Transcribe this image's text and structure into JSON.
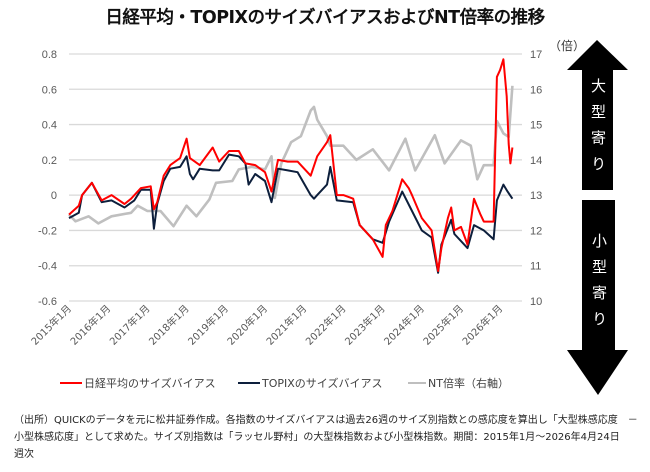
{
  "title": "日経平均・TOPIXのサイズバイアスおよびNT倍率の推移",
  "right_unit": "（倍）",
  "arrows": {
    "up_label": "大型寄り",
    "down_label": "小型寄り"
  },
  "legend": [
    "日経平均のサイズバイアス",
    "TOPIXのサイズバイアス",
    "NT倍率（右軸）"
  ],
  "footnote": "（出所）QUICKのデータを元に松井証券作成。各指数のサイズバイアスは過去26週のサイズ別指数との感応度を算出し「大型株感応度　－　小型株感応度」として求めた。サイズ別指数は「ラッセル野村」の大型株指数および小型株指数。期間：2015年1月～2026年4月24日　週次",
  "chart_data": {
    "type": "line",
    "title": "日経平均・TOPIXのサイズバイアスおよびNT倍率の推移",
    "xlim": [
      "2015-01-01",
      "2026-07-22"
    ],
    "x_ticks": [
      "2015年1月",
      "2016年1月",
      "2017年1月",
      "2018年1月",
      "2019年1月",
      "2020年1月",
      "2021年1月",
      "2022年1月",
      "2023年1月",
      "2024年1月",
      "2025年1月",
      "2026年1月"
    ],
    "ylim": [
      -0.6,
      0.8
    ],
    "y_ticks": [
      "0.8",
      "0.6",
      "0.4",
      "0.2",
      "0",
      "-0.2",
      "-0.4",
      "-0.6"
    ],
    "y2lim": [
      10,
      17
    ],
    "y2_ticks": [
      "17",
      "16",
      "15",
      "14",
      "13",
      "12",
      "11",
      "10"
    ],
    "y2label": "（倍）",
    "grid": true,
    "legend_position": "bottom",
    "series": [
      {
        "name": "日経平均のサイズバイアス",
        "axis": "left",
        "color": "#ff0000",
        "points": [
          [
            "2015-01",
            -0.11
          ],
          [
            "2015-04",
            -0.06
          ],
          [
            "2015-05",
            0
          ],
          [
            "2015-08",
            0.07
          ],
          [
            "2015-11",
            -0.03
          ],
          [
            "2016-02",
            0
          ],
          [
            "2016-06",
            -0.05
          ],
          [
            "2016-08",
            -0.02
          ],
          [
            "2016-11",
            0.04
          ],
          [
            "2017-02",
            0.05
          ],
          [
            "2017-03",
            -0.08
          ],
          [
            "2017-04",
            -0.04
          ],
          [
            "2017-06",
            0.11
          ],
          [
            "2017-08",
            0.17
          ],
          [
            "2017-11",
            0.21
          ],
          [
            "2018-01",
            0.32
          ],
          [
            "2018-02",
            0.21
          ],
          [
            "2018-05",
            0.17
          ],
          [
            "2018-09",
            0.27
          ],
          [
            "2018-11",
            0.19
          ],
          [
            "2019-02",
            0.25
          ],
          [
            "2019-05",
            0.25
          ],
          [
            "2019-07",
            0.18
          ],
          [
            "2019-10",
            0.17
          ],
          [
            "2020-01",
            0.13
          ],
          [
            "2020-03",
            0.02
          ],
          [
            "2020-05",
            0.2
          ],
          [
            "2020-08",
            0.19
          ],
          [
            "2020-11",
            0.19
          ],
          [
            "2021-03",
            0.11
          ],
          [
            "2021-05",
            0.22
          ],
          [
            "2021-08",
            0.3
          ],
          [
            "2021-09",
            0.34
          ],
          [
            "2021-11",
            0.0
          ],
          [
            "2022-01",
            0.0
          ],
          [
            "2022-04",
            -0.02
          ],
          [
            "2022-06",
            -0.17
          ],
          [
            "2022-10",
            -0.25
          ],
          [
            "2023-01",
            -0.35
          ],
          [
            "2023-02",
            -0.17
          ],
          [
            "2023-04",
            -0.09
          ],
          [
            "2023-07",
            0.09
          ],
          [
            "2023-09",
            0.04
          ],
          [
            "2023-10",
            0.0
          ],
          [
            "2024-01",
            -0.13
          ],
          [
            "2024-04",
            -0.2
          ],
          [
            "2024-06",
            -0.43
          ],
          [
            "2024-07",
            -0.3
          ],
          [
            "2024-09",
            -0.13
          ],
          [
            "2024-10",
            -0.07
          ],
          [
            "2024-11",
            -0.2
          ],
          [
            "2025-01",
            -0.18
          ],
          [
            "2025-03",
            -0.28
          ],
          [
            "2025-05",
            -0.02
          ],
          [
            "2025-07",
            -0.11
          ],
          [
            "2025-08",
            -0.15
          ],
          [
            "2025-11",
            -0.15
          ],
          [
            "2025-12",
            0.67
          ],
          [
            "2026-01",
            0.71
          ],
          [
            "2026-02",
            0.77
          ],
          [
            "2026-03-01",
            0.56
          ],
          [
            "2026-03-20",
            0.29
          ],
          [
            "2026-04-05",
            0.18
          ],
          [
            "2026-04-24",
            0.27
          ]
        ]
      },
      {
        "name": "TOPIXのサイズバイアス",
        "axis": "left",
        "color": "#0d1f3c",
        "points": [
          [
            "2015-01",
            -0.13
          ],
          [
            "2015-04",
            -0.1
          ],
          [
            "2015-05",
            0
          ],
          [
            "2015-08",
            0.07
          ],
          [
            "2015-11",
            -0.04
          ],
          [
            "2016-02",
            -0.03
          ],
          [
            "2016-06",
            -0.07
          ],
          [
            "2016-09",
            -0.03
          ],
          [
            "2016-11",
            0.03
          ],
          [
            "2017-02",
            0.03
          ],
          [
            "2017-03",
            -0.19
          ],
          [
            "2017-04",
            -0.05
          ],
          [
            "2017-06",
            0.08
          ],
          [
            "2017-08",
            0.15
          ],
          [
            "2017-11",
            0.16
          ],
          [
            "2018-01",
            0.22
          ],
          [
            "2018-02",
            0.12
          ],
          [
            "2018-03",
            0.09
          ],
          [
            "2018-05",
            0.15
          ],
          [
            "2018-09",
            0.14
          ],
          [
            "2018-11",
            0.14
          ],
          [
            "2019-02",
            0.23
          ],
          [
            "2019-05",
            0.22
          ],
          [
            "2019-07",
            0.18
          ],
          [
            "2019-08",
            0.06
          ],
          [
            "2019-10",
            0.12
          ],
          [
            "2020-01",
            0.08
          ],
          [
            "2020-03",
            -0.04
          ],
          [
            "2020-05",
            0.15
          ],
          [
            "2020-08",
            0.14
          ],
          [
            "2020-11",
            0.13
          ],
          [
            "2021-03",
            0.0
          ],
          [
            "2021-04",
            -0.02
          ],
          [
            "2021-05",
            0.0
          ],
          [
            "2021-08",
            0.06
          ],
          [
            "2021-09",
            0.16
          ],
          [
            "2021-11",
            -0.03
          ],
          [
            "2022-04",
            -0.04
          ],
          [
            "2022-06",
            -0.17
          ],
          [
            "2022-10",
            -0.25
          ],
          [
            "2023-01",
            -0.27
          ],
          [
            "2023-03",
            -0.15
          ],
          [
            "2023-07",
            0.02
          ],
          [
            "2023-10",
            -0.09
          ],
          [
            "2024-01",
            -0.2
          ],
          [
            "2024-04",
            -0.24
          ],
          [
            "2024-06",
            -0.44
          ],
          [
            "2024-07",
            -0.28
          ],
          [
            "2024-10",
            -0.14
          ],
          [
            "2024-11",
            -0.22
          ],
          [
            "2025-03",
            -0.3
          ],
          [
            "2025-05",
            -0.17
          ],
          [
            "2025-08",
            -0.2
          ],
          [
            "2025-11",
            -0.25
          ],
          [
            "2025-12",
            -0.03
          ],
          [
            "2026-02-01",
            0.06
          ],
          [
            "2026-03-10",
            0.02
          ],
          [
            "2026-04-24",
            -0.02
          ]
        ]
      },
      {
        "name": "NT倍率（右軸）",
        "axis": "right",
        "color": "#bfbfbf",
        "points": [
          [
            "2015-01",
            12.45
          ],
          [
            "2015-03",
            12.26
          ],
          [
            "2015-07",
            12.4
          ],
          [
            "2015-10",
            12.2
          ],
          [
            "2016-02",
            12.4
          ],
          [
            "2016-08",
            12.5
          ],
          [
            "2016-10",
            12.7
          ],
          [
            "2017-01",
            12.55
          ],
          [
            "2017-05",
            12.55
          ],
          [
            "2017-09",
            12.12
          ],
          [
            "2018-01",
            12.7
          ],
          [
            "2018-04",
            12.4
          ],
          [
            "2018-08",
            12.88
          ],
          [
            "2018-10",
            13.35
          ],
          [
            "2019-03",
            13.4
          ],
          [
            "2019-05",
            13.73
          ],
          [
            "2019-09",
            13.8
          ],
          [
            "2020-01",
            13.73
          ],
          [
            "2020-03",
            14.1
          ],
          [
            "2020-04",
            12.92
          ],
          [
            "2020-06",
            13.9
          ],
          [
            "2020-09",
            14.5
          ],
          [
            "2020-12",
            14.67
          ],
          [
            "2021-03",
            15.4
          ],
          [
            "2021-04",
            15.5
          ],
          [
            "2021-05",
            15.14
          ],
          [
            "2021-08",
            14.67
          ],
          [
            "2021-09",
            14.4
          ],
          [
            "2022-01",
            14.4
          ],
          [
            "2022-05",
            14.0
          ],
          [
            "2022-10",
            14.3
          ],
          [
            "2023-03",
            13.7
          ],
          [
            "2023-08",
            14.6
          ],
          [
            "2023-11",
            13.7
          ],
          [
            "2024-05",
            14.7
          ],
          [
            "2024-08",
            13.9
          ],
          [
            "2025-01",
            14.55
          ],
          [
            "2025-04",
            14.4
          ],
          [
            "2025-06",
            13.45
          ],
          [
            "2025-08",
            13.85
          ],
          [
            "2025-11",
            13.85
          ],
          [
            "2025-12",
            15.1
          ],
          [
            "2026-02-01",
            14.75
          ],
          [
            "2026-03-20",
            14.65
          ],
          [
            "2026-04-24",
            16.1
          ]
        ]
      }
    ]
  }
}
